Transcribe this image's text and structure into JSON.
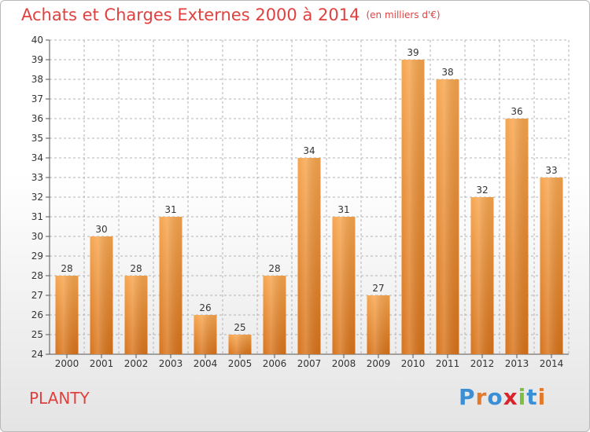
{
  "header": {
    "title": "Achats et Charges Externes 2000 à 2014",
    "subtitle": "(en milliers d'€)"
  },
  "footer": {
    "commune": "PLANTY",
    "logo": "Proxiti"
  },
  "colors": {
    "bar_top": "#f7a54d",
    "bar_bottom": "#d8731a",
    "title": "#e0413f",
    "grid": "#b3b3b3"
  },
  "chart_data": {
    "type": "bar",
    "title": "Achats et Charges Externes 2000 à 2014",
    "subtitle": "(en milliers d'€)",
    "categories": [
      "2000",
      "2001",
      "2002",
      "2003",
      "2004",
      "2005",
      "2006",
      "2007",
      "2008",
      "2009",
      "2010",
      "2011",
      "2012",
      "2013",
      "2014"
    ],
    "values": [
      28,
      30,
      28,
      31,
      26,
      25,
      28,
      34,
      31,
      27,
      39,
      38,
      32,
      36,
      33
    ],
    "ylim": [
      24,
      40
    ],
    "yticks": [
      24,
      25,
      26,
      27,
      28,
      29,
      30,
      31,
      32,
      33,
      34,
      35,
      36,
      37,
      38,
      39,
      40
    ],
    "grid": true,
    "data_labels": true
  }
}
